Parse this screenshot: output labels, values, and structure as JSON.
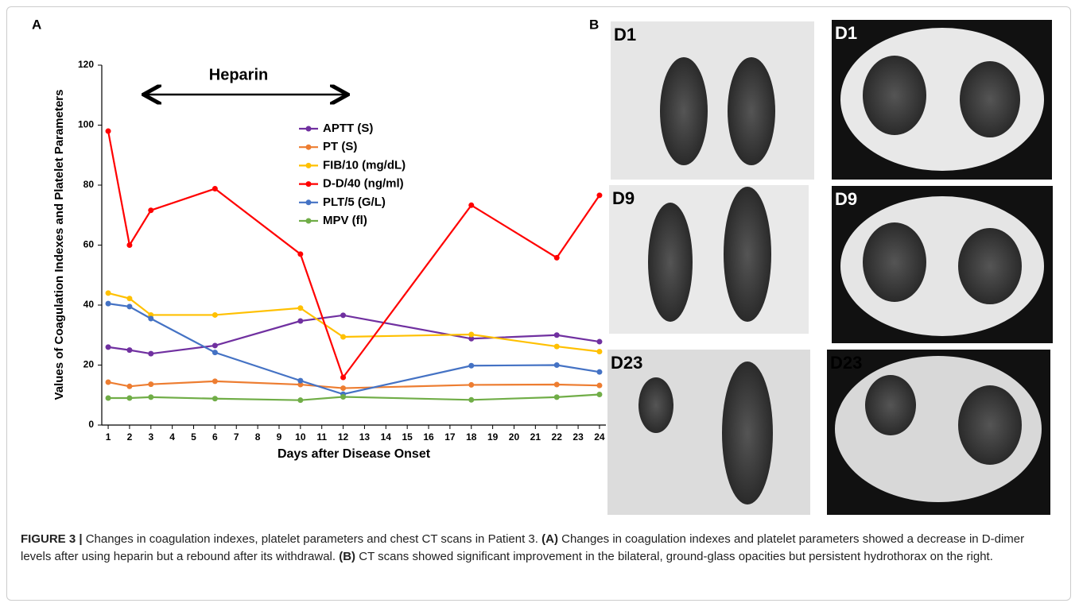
{
  "chart_data": {
    "type": "line",
    "panel_label": "A",
    "y_label": "Values of Coagulation Indexes and Platelet Parameters",
    "x_label": "Days after Disease Onset",
    "annotation": "Heparin",
    "x": [
      1,
      2,
      3,
      6,
      10,
      12,
      18,
      22,
      24
    ],
    "xlim": [
      0.7,
      24.3
    ],
    "xticks": [
      1,
      2,
      3,
      4,
      5,
      6,
      7,
      8,
      9,
      10,
      11,
      12,
      13,
      14,
      15,
      16,
      17,
      18,
      19,
      20,
      21,
      22,
      23,
      24
    ],
    "ylim": [
      0,
      120
    ],
    "yticks": [
      0,
      20,
      40,
      60,
      80,
      100,
      120
    ],
    "grid": false,
    "series": [
      {
        "name": "APTT (S)",
        "color": "#7030a0",
        "values": [
          26,
          25,
          23.8,
          26.5,
          34.7,
          36.6,
          28.8,
          30,
          27.8
        ]
      },
      {
        "name": "PT (S)",
        "color": "#ed7d31",
        "values": [
          14.3,
          12.9,
          13.6,
          14.6,
          13.5,
          12.3,
          13.4,
          13.5,
          13.2
        ]
      },
      {
        "name": "FIB/10 (mg/dL)",
        "color": "#ffc000",
        "values": [
          44,
          42.2,
          36.7,
          36.7,
          39,
          29.4,
          30.2,
          26.2,
          24.5
        ]
      },
      {
        "name": "D-D/40 (ng/ml)",
        "color": "#ff0000",
        "values": [
          98,
          60,
          71.6,
          78.8,
          57,
          15.9,
          73.3,
          55.8,
          76.6
        ]
      },
      {
        "name": "PLT/5 (G/L)",
        "color": "#4472c4",
        "values": [
          40.5,
          39.5,
          35.5,
          24.2,
          14.8,
          10.3,
          19.8,
          20,
          17.7
        ]
      },
      {
        "name": "MPV (fl)",
        "color": "#70ad47",
        "values": [
          9,
          9,
          9.3,
          8.8,
          8.3,
          9.4,
          8.4,
          9.3,
          10.2
        ]
      }
    ]
  },
  "figure": {
    "panel_b": "B",
    "ct_labels": [
      "D1",
      "D1",
      "D9",
      "D9",
      "D23",
      "D23"
    ],
    "caption": {
      "lead": "FIGURE 3 |",
      "text1": " Changes in coagulation indexes, platelet parameters and chest CT scans in Patient 3. ",
      "a": "(A)",
      "text2": " Changes in coagulation indexes and platelet parameters showed a decrease in D-dimer levels after using heparin but a rebound after its withdrawal. ",
      "b": "(B)",
      "text3": " CT scans showed significant improvement in the bilateral, ground-glass opacities but persistent hydrothorax on the right."
    }
  }
}
